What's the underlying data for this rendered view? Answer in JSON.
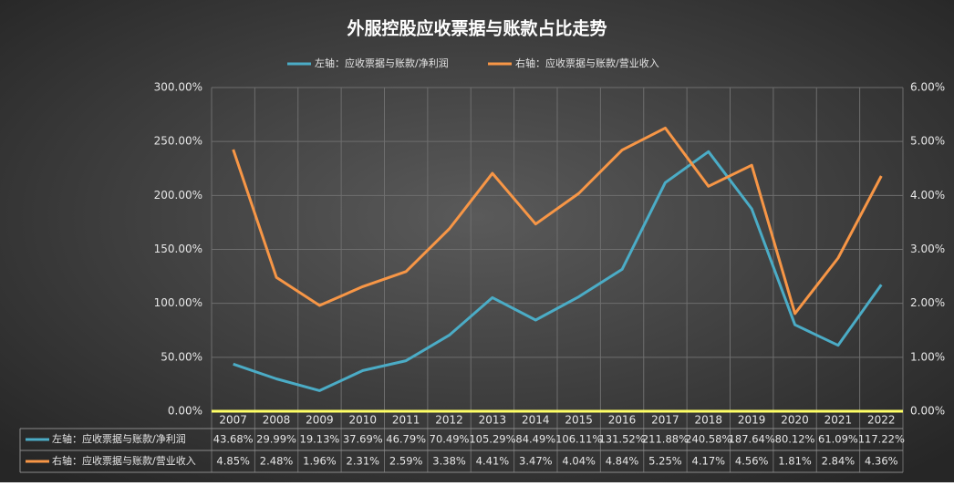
{
  "chart_data": {
    "type": "line",
    "title": "外服控股应收票据与账款占比走势",
    "categories": [
      "2007",
      "2008",
      "2009",
      "2010",
      "2011",
      "2012",
      "2013",
      "2014",
      "2015",
      "2016",
      "2017",
      "2018",
      "2019",
      "2020",
      "2021",
      "2022"
    ],
    "series": [
      {
        "name": "左轴：应收票据与账款/净利润",
        "color": "#4bacc6",
        "axis": "y",
        "values": [
          43.68,
          29.99,
          19.13,
          37.69,
          46.79,
          70.49,
          105.29,
          84.49,
          106.11,
          131.52,
          211.88,
          240.58,
          187.64,
          80.12,
          61.09,
          117.22
        ],
        "value_labels": [
          "43.68%",
          "29.99%",
          "19.13%",
          "37.69%",
          "46.79%",
          "70.49%",
          "105.29%",
          "84.49%",
          "106.11%",
          "131.52%",
          "211.88%",
          "240.58%",
          "187.64%",
          "80.12%",
          "61.09%",
          "117.22%"
        ]
      },
      {
        "name": "右轴：应收票据与账款/营业收入",
        "color": "#f79646",
        "axis": "y2",
        "values": [
          4.85,
          2.48,
          1.96,
          2.31,
          2.59,
          3.38,
          4.41,
          3.47,
          4.04,
          4.84,
          5.25,
          4.17,
          4.56,
          1.81,
          2.84,
          4.36
        ],
        "value_labels": [
          "4.85%",
          "2.48%",
          "1.96%",
          "2.31%",
          "2.59%",
          "3.38%",
          "4.41%",
          "3.47%",
          "4.04%",
          "4.84%",
          "5.25%",
          "4.17%",
          "4.56%",
          "1.81%",
          "2.84%",
          "4.36%"
        ]
      }
    ],
    "ylim": [
      0,
      300
    ],
    "yticks": [
      {
        "value": 0,
        "label": "0.00%"
      },
      {
        "value": 50,
        "label": "50.00%"
      },
      {
        "value": 100,
        "label": "100.00%"
      },
      {
        "value": 150,
        "label": "150.00%"
      },
      {
        "value": 200,
        "label": "200.00%"
      },
      {
        "value": 250,
        "label": "250.00%"
      },
      {
        "value": 300,
        "label": "300.00%"
      }
    ],
    "y2lim": [
      0,
      6
    ],
    "y2ticks": [
      {
        "value": 0,
        "label": "0.00%"
      },
      {
        "value": 1,
        "label": "1.00%"
      },
      {
        "value": 2,
        "label": "2.00%"
      },
      {
        "value": 3,
        "label": "3.00%"
      },
      {
        "value": 4,
        "label": "4.00%"
      },
      {
        "value": 5,
        "label": "5.00%"
      },
      {
        "value": 6,
        "label": "6.00%"
      }
    ],
    "grid": true
  }
}
